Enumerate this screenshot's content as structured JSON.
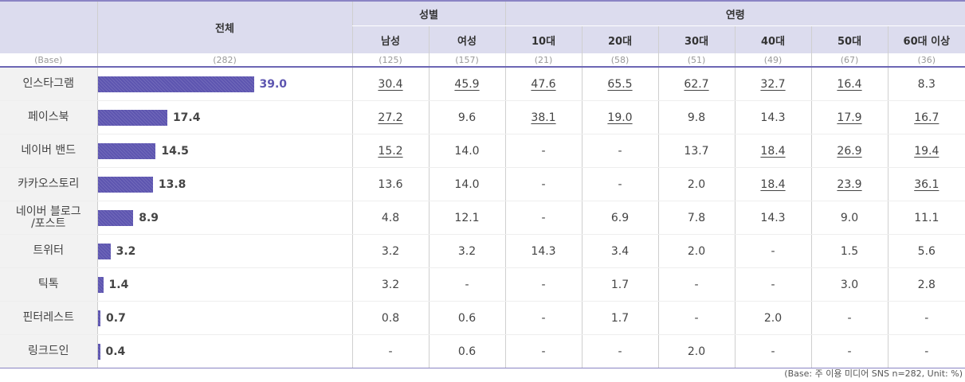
{
  "header": {
    "total": "전체",
    "gender": "성별",
    "age": "연령",
    "columns": [
      "남성",
      "여성",
      "10대",
      "20대",
      "30대",
      "40대",
      "50대",
      "60대 이상"
    ]
  },
  "base": {
    "label": "(Base)",
    "total": "(282)",
    "values": [
      "(125)",
      "(157)",
      "(21)",
      "(58)",
      "(51)",
      "(49)",
      "(67)",
      "(36)"
    ]
  },
  "note": "(Base: 주 이용 미디어 SNS n=282, Unit: %)",
  "colors": {
    "bar": "#5d55b0",
    "header_bg": "#dcdcee",
    "label_bg": "#f2f2f2",
    "highlight_text": "#5d55b0"
  },
  "chart_data": {
    "type": "table",
    "max_value": 39.0,
    "rows": [
      {
        "label": "인스타그램",
        "total": "39.0",
        "total_value": 39.0,
        "highlight": true,
        "cells": [
          {
            "v": "30.4",
            "u": true
          },
          {
            "v": "45.9",
            "u": true
          },
          {
            "v": "47.6",
            "u": true
          },
          {
            "v": "65.5",
            "u": true
          },
          {
            "v": "62.7",
            "u": true
          },
          {
            "v": "32.7",
            "u": true
          },
          {
            "v": "16.4",
            "u": true
          },
          {
            "v": "8.3",
            "u": false
          }
        ]
      },
      {
        "label": "페이스북",
        "total": "17.4",
        "total_value": 17.4,
        "highlight": false,
        "cells": [
          {
            "v": "27.2",
            "u": true
          },
          {
            "v": "9.6",
            "u": false
          },
          {
            "v": "38.1",
            "u": true
          },
          {
            "v": "19.0",
            "u": true
          },
          {
            "v": "9.8",
            "u": false
          },
          {
            "v": "14.3",
            "u": false
          },
          {
            "v": "17.9",
            "u": true
          },
          {
            "v": "16.7",
            "u": true
          }
        ]
      },
      {
        "label": "네이버 밴드",
        "total": "14.5",
        "total_value": 14.5,
        "highlight": false,
        "cells": [
          {
            "v": "15.2",
            "u": true
          },
          {
            "v": "14.0",
            "u": false
          },
          {
            "v": "-",
            "u": false
          },
          {
            "v": "-",
            "u": false
          },
          {
            "v": "13.7",
            "u": false
          },
          {
            "v": "18.4",
            "u": true
          },
          {
            "v": "26.9",
            "u": true
          },
          {
            "v": "19.4",
            "u": true
          }
        ]
      },
      {
        "label": "카카오스토리",
        "total": "13.8",
        "total_value": 13.8,
        "highlight": false,
        "cells": [
          {
            "v": "13.6",
            "u": false
          },
          {
            "v": "14.0",
            "u": false
          },
          {
            "v": "-",
            "u": false
          },
          {
            "v": "-",
            "u": false
          },
          {
            "v": "2.0",
            "u": false
          },
          {
            "v": "18.4",
            "u": true
          },
          {
            "v": "23.9",
            "u": true
          },
          {
            "v": "36.1",
            "u": true
          }
        ]
      },
      {
        "label": "네이버 블로그\n/포스트",
        "total": "8.9",
        "total_value": 8.9,
        "highlight": false,
        "cells": [
          {
            "v": "4.8",
            "u": false
          },
          {
            "v": "12.1",
            "u": false
          },
          {
            "v": "-",
            "u": false
          },
          {
            "v": "6.9",
            "u": false
          },
          {
            "v": "7.8",
            "u": false
          },
          {
            "v": "14.3",
            "u": false
          },
          {
            "v": "9.0",
            "u": false
          },
          {
            "v": "11.1",
            "u": false
          }
        ]
      },
      {
        "label": "트위터",
        "total": "3.2",
        "total_value": 3.2,
        "highlight": false,
        "cells": [
          {
            "v": "3.2",
            "u": false
          },
          {
            "v": "3.2",
            "u": false
          },
          {
            "v": "14.3",
            "u": false
          },
          {
            "v": "3.4",
            "u": false
          },
          {
            "v": "2.0",
            "u": false
          },
          {
            "v": "-",
            "u": false
          },
          {
            "v": "1.5",
            "u": false
          },
          {
            "v": "5.6",
            "u": false
          }
        ]
      },
      {
        "label": "틱톡",
        "total": "1.4",
        "total_value": 1.4,
        "highlight": false,
        "cells": [
          {
            "v": "3.2",
            "u": false
          },
          {
            "v": "-",
            "u": false
          },
          {
            "v": "-",
            "u": false
          },
          {
            "v": "1.7",
            "u": false
          },
          {
            "v": "-",
            "u": false
          },
          {
            "v": "-",
            "u": false
          },
          {
            "v": "3.0",
            "u": false
          },
          {
            "v": "2.8",
            "u": false
          }
        ]
      },
      {
        "label": "핀터레스트",
        "total": "0.7",
        "total_value": 0.7,
        "highlight": false,
        "cells": [
          {
            "v": "0.8",
            "u": false
          },
          {
            "v": "0.6",
            "u": false
          },
          {
            "v": "-",
            "u": false
          },
          {
            "v": "1.7",
            "u": false
          },
          {
            "v": "-",
            "u": false
          },
          {
            "v": "2.0",
            "u": false
          },
          {
            "v": "-",
            "u": false
          },
          {
            "v": "-",
            "u": false
          }
        ]
      },
      {
        "label": "링크드인",
        "total": "0.4",
        "total_value": 0.4,
        "highlight": false,
        "cells": [
          {
            "v": "-",
            "u": false
          },
          {
            "v": "0.6",
            "u": false
          },
          {
            "v": "-",
            "u": false
          },
          {
            "v": "-",
            "u": false
          },
          {
            "v": "2.0",
            "u": false
          },
          {
            "v": "-",
            "u": false
          },
          {
            "v": "-",
            "u": false
          },
          {
            "v": "-",
            "u": false
          }
        ]
      }
    ]
  }
}
